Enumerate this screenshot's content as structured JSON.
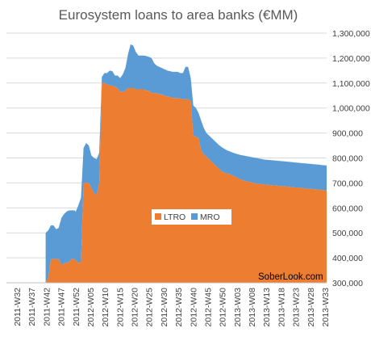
{
  "chart_data": {
    "type": "area",
    "stacked": true,
    "title": "Eurosystem loans to area banks (€MM)",
    "xlabel": "",
    "ylabel": "",
    "ylim": [
      300000,
      1300000
    ],
    "y_ticks": [
      "300,000",
      "400,000",
      "500,000",
      "600,000",
      "700,000",
      "800,000",
      "900,000",
      "1,000,000",
      "1,100,000",
      "1,200,000",
      "1,300,000"
    ],
    "y_tick_values": [
      300000,
      400000,
      500000,
      600000,
      700000,
      800000,
      900000,
      1000000,
      1100000,
      1200000,
      1300000
    ],
    "x_tick_labels": [
      "2011-W32",
      "2011-W37",
      "2011-W42",
      "2011-W47",
      "2011-W52",
      "2012-W05",
      "2012-W10",
      "2012-W15",
      "2012-W20",
      "2012-W25",
      "2012-W30",
      "2012-W35",
      "2012-W40",
      "2012-W45",
      "2012-W50",
      "2013-W03",
      "2013-W08",
      "2013-W13",
      "2013-W18",
      "2013-W23",
      "2013-W28",
      "2013-W33"
    ],
    "grid": true,
    "legend_position": "center",
    "annotation": "SoberLook.com",
    "colors": {
      "LTRO": "#ed7d31",
      "MRO": "#5b9bd5"
    },
    "x": [
      30,
      32,
      34,
      36,
      38,
      40,
      42,
      44,
      46,
      48,
      50,
      52,
      53,
      55,
      57,
      59,
      61,
      63,
      65,
      67,
      69,
      71,
      73,
      75,
      77,
      79,
      81,
      83,
      85,
      87,
      89,
      91,
      93,
      95,
      97,
      99,
      101,
      103,
      105,
      107,
      109,
      111,
      113,
      115,
      117,
      119,
      121,
      123,
      125,
      127,
      129,
      131,
      133,
      135,
      137,
      139,
      141,
      143,
      145,
      147,
      149,
      151,
      153,
      155,
      157,
      159,
      161,
      163,
      165,
      167,
      169,
      171,
      173,
      175,
      177,
      179,
      181,
      183,
      185,
      187,
      189,
      191,
      193,
      195,
      197,
      199,
      201,
      203,
      205,
      207,
      209,
      211,
      213,
      215,
      217,
      219,
      221,
      223,
      225,
      227,
      229,
      231,
      233,
      235,
      237,
      239,
      241,
      243,
      245
    ],
    "series": [
      {
        "name": "LTRO",
        "values": [
          300000,
          320000,
          395000,
          395000,
          395000,
          395000,
          370000,
          378000,
          380000,
          385000,
          395000,
          395000,
          390000,
          380000,
          380000,
          700000,
          700000,
          700000,
          680000,
          660000,
          650000,
          700000,
          1100000,
          1100000,
          1095000,
          1090000,
          1090000,
          1085000,
          1080000,
          1065000,
          1065000,
          1070000,
          1080000,
          1080000,
          1080000,
          1075000,
          1075000,
          1075000,
          1075000,
          1070000,
          1070000,
          1060000,
          1060000,
          1060000,
          1055000,
          1055000,
          1050000,
          1045000,
          1045000,
          1040000,
          1040000,
          1040000,
          1038000,
          1035000,
          1035000,
          1035000,
          1030000,
          890000,
          885000,
          880000,
          830000,
          815000,
          805000,
          795000,
          785000,
          775000,
          765000,
          755000,
          745000,
          740000,
          738000,
          735000,
          730000,
          725000,
          720000,
          715000,
          710000,
          708000,
          705000,
          703000,
          700000,
          698000,
          696000,
          695000,
          694000,
          693000,
          692000,
          691000,
          690000,
          689000,
          688000,
          687000,
          686000,
          685000,
          684000,
          683000,
          682000,
          681000,
          680000,
          679000,
          678000,
          677000,
          676000,
          675000,
          674000,
          673000,
          672000,
          671000,
          670000
        ],
        "totals": [
          500000,
          510000,
          530000,
          530000,
          515000,
          520000,
          560000,
          575000,
          585000,
          590000,
          590000,
          590000,
          585000,
          610000,
          640000,
          840000,
          860000,
          850000,
          810000,
          800000,
          795000,
          820000,
          1125000,
          1140000,
          1140000,
          1150000,
          1148000,
          1130000,
          1130000,
          1120000,
          1135000,
          1160000,
          1215000,
          1255000,
          1250000,
          1225000,
          1210000,
          1210000,
          1210000,
          1208000,
          1205000,
          1200000,
          1180000,
          1170000,
          1165000,
          1160000,
          1155000,
          1150000,
          1148000,
          1145000,
          1145000,
          1145000,
          1140000,
          1140000,
          1165000,
          1165000,
          1120000,
          1010000,
          1000000,
          980000,
          950000,
          920000,
          900000,
          890000,
          880000,
          870000,
          860000,
          850000,
          842000,
          836000,
          830000,
          826000,
          822000,
          818000,
          815000,
          812000,
          810000,
          808000,
          806000,
          804000,
          802000,
          800000,
          798000,
          796000,
          794000,
          793000,
          792000,
          791000,
          790000,
          789000,
          788000,
          787000,
          786000,
          785000,
          784000,
          783000,
          782000,
          781000,
          780000,
          779000,
          778000,
          777000,
          776000,
          775000,
          774000,
          773000,
          772000,
          771000,
          770000
        ]
      },
      {
        "name": "MRO"
      }
    ]
  }
}
